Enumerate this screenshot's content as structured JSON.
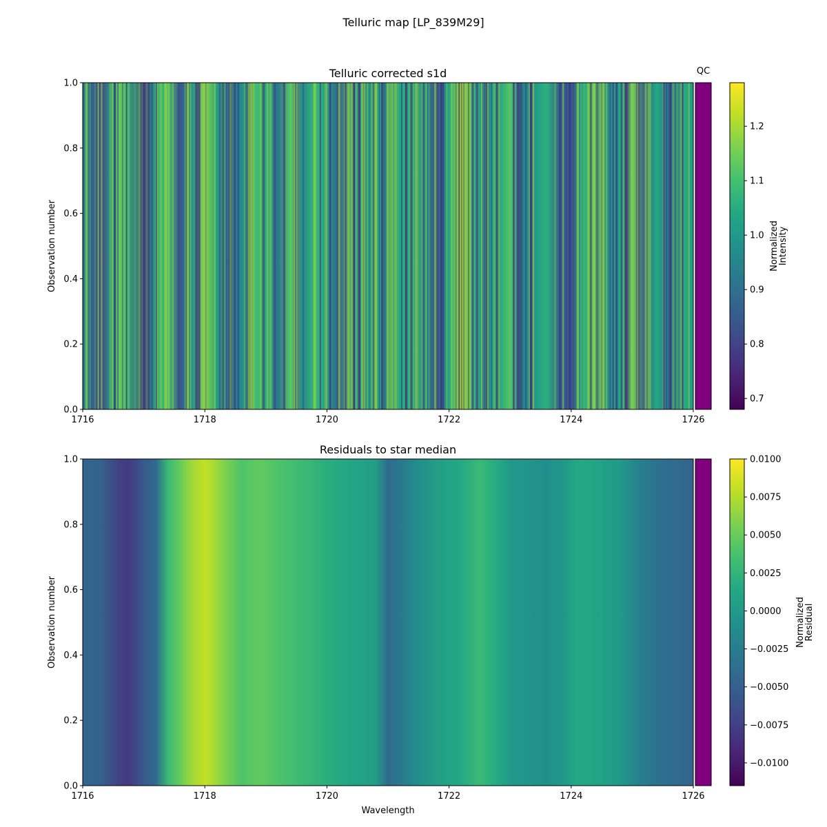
{
  "figure": {
    "title": "Telluric map [LP_839M29]"
  },
  "chart_data": [
    {
      "type": "heatmap",
      "title": "Telluric corrected s1d",
      "xlabel": "",
      "ylabel": "Observation number",
      "xlim": [
        1716,
        1726
      ],
      "ylim": [
        0,
        1
      ],
      "x_ticks": [
        "1716",
        "1718",
        "1720",
        "1722",
        "1724",
        "1726"
      ],
      "y_ticks": [
        "0.0",
        "0.2",
        "0.4",
        "0.6",
        "0.8",
        "1.0"
      ],
      "colormap": "viridis",
      "colorbar": {
        "label_lines": [
          "Normalized",
          "Intensity"
        ],
        "range": [
          0.68,
          1.28
        ],
        "ticks": [
          0.7,
          0.8,
          0.9,
          1.0,
          1.1,
          1.2
        ],
        "tick_labels": [
          "0.7",
          "0.8",
          "0.9",
          "1.0",
          "1.1",
          "1.2"
        ]
      },
      "qc_strip": {
        "label": "QC",
        "color": "#800080"
      },
      "bands": {
        "x": [
          1716.0,
          1716.2,
          1716.3,
          1716.5,
          1716.6,
          1716.8,
          1717.0,
          1717.2,
          1717.4,
          1717.6,
          1717.8,
          1718.0,
          1718.2,
          1718.4,
          1718.6,
          1718.8,
          1719.0,
          1719.2,
          1719.4,
          1719.6,
          1719.8,
          1720.0,
          1720.2,
          1720.4,
          1720.6,
          1720.8,
          1721.0,
          1721.2,
          1721.4,
          1721.6,
          1721.8,
          1722.0,
          1722.2,
          1722.4,
          1722.6,
          1722.8,
          1723.0,
          1723.2,
          1723.4,
          1723.6,
          1723.8,
          1724.0,
          1724.2,
          1724.4,
          1724.6,
          1724.8,
          1725.0,
          1725.2,
          1725.4,
          1725.6,
          1725.8,
          1726.0
        ],
        "values": [
          0.98,
          0.86,
          0.8,
          1.05,
          1.14,
          1.08,
          0.78,
          1.04,
          1.1,
          0.84,
          1.0,
          1.18,
          1.02,
          0.9,
          0.96,
          1.1,
          1.06,
          0.92,
          1.12,
          0.96,
          1.08,
          1.02,
          0.86,
          1.12,
          1.0,
          1.06,
          0.94,
          1.04,
          1.08,
          0.98,
          0.82,
          1.04,
          1.2,
          1.08,
          0.96,
          1.02,
          1.12,
          0.94,
          1.0,
          1.06,
          0.88,
          0.84,
          1.04,
          1.14,
          0.96,
          1.04,
          1.16,
          0.86,
          1.04,
          0.92,
          1.06,
          1.0
        ]
      }
    },
    {
      "type": "heatmap",
      "title": "Residuals to star median",
      "xlabel": "Wavelength",
      "ylabel": "Observation number",
      "xlim": [
        1716,
        1726
      ],
      "ylim": [
        0,
        1
      ],
      "x_ticks": [
        "1716",
        "1718",
        "1720",
        "1722",
        "1724",
        "1726"
      ],
      "y_ticks": [
        "0.0",
        "0.2",
        "0.4",
        "0.6",
        "0.8",
        "1.0"
      ],
      "colormap": "viridis",
      "colorbar": {
        "label_lines": [
          "Normalized",
          "Residual"
        ],
        "range": [
          -0.0115,
          0.01
        ],
        "ticks": [
          -0.01,
          -0.0075,
          -0.005,
          -0.0025,
          0.0,
          0.0025,
          0.005,
          0.0075,
          0.01
        ],
        "tick_labels": [
          "−0.0100",
          "−0.0075",
          "−0.0050",
          "−0.0025",
          "0.0000",
          "0.0025",
          "0.0050",
          "0.0075",
          "0.0100"
        ]
      },
      "qc_strip": {
        "color": "#800080"
      },
      "bands": {
        "x": [
          1716.0,
          1716.3,
          1716.6,
          1716.75,
          1717.0,
          1717.2,
          1717.4,
          1717.6,
          1717.8,
          1718.0,
          1718.1,
          1718.3,
          1718.6,
          1718.9,
          1719.2,
          1719.6,
          1720.0,
          1720.4,
          1720.8,
          1721.0,
          1721.2,
          1721.5,
          1721.8,
          1722.2,
          1722.5,
          1722.8,
          1723.0,
          1723.3,
          1723.6,
          1723.9,
          1724.1,
          1724.4,
          1724.8,
          1725.1,
          1725.4,
          1725.7,
          1726.0
        ],
        "values": [
          -0.0045,
          -0.0048,
          -0.0075,
          -0.0078,
          -0.0055,
          -0.004,
          0.003,
          0.005,
          0.007,
          0.008,
          0.0075,
          0.006,
          0.004,
          0.0048,
          0.004,
          0.003,
          0.002,
          0.001,
          0.0005,
          -0.004,
          -0.003,
          -0.001,
          0.0005,
          0.0015,
          0.003,
          0.0015,
          0.0,
          -0.0005,
          -0.001,
          0.0,
          0.0015,
          0.001,
          0.0,
          -0.002,
          -0.0035,
          -0.004,
          -0.0045
        ]
      }
    }
  ]
}
